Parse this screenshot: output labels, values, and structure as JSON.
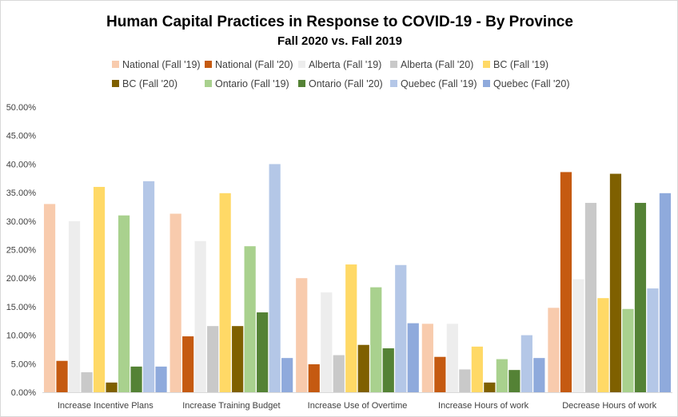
{
  "chart_data": {
    "type": "bar",
    "title": "Human Capital Practices in Response to COVID-19 - By Province",
    "subtitle": "Fall 2020 vs. Fall 2019",
    "xlabel": "",
    "ylabel": "",
    "ylim": [
      0,
      0.5
    ],
    "y_ticks": [
      "0.00%",
      "5.00%",
      "10.00%",
      "15.00%",
      "20.00%",
      "25.00%",
      "30.00%",
      "35.00%",
      "40.00%",
      "45.00%",
      "50.00%"
    ],
    "grid": false,
    "legend_position": "top",
    "categories": [
      "Increase Incentive Plans",
      "Increase Training Budget",
      "Increase Use of Overtime",
      "Increase Hours of work",
      "Decrease Hours of work"
    ],
    "series": [
      {
        "name": "National (Fall '19)",
        "color": "#f8cbad",
        "values": [
          0.33,
          0.313,
          0.2,
          0.12,
          0.148
        ]
      },
      {
        "name": "National (Fall '20)",
        "color": "#c55a11",
        "values": [
          0.055,
          0.098,
          0.049,
          0.062,
          0.386
        ]
      },
      {
        "name": "Alberta (Fall '19)",
        "color": "#ededed",
        "values": [
          0.3,
          0.265,
          0.175,
          0.12,
          0.198
        ]
      },
      {
        "name": "Alberta (Fall '20)",
        "color": "#c9c9c9",
        "values": [
          0.035,
          0.116,
          0.065,
          0.04,
          0.332
        ]
      },
      {
        "name": "BC (Fall '19)",
        "color": "#ffd966",
        "values": [
          0.36,
          0.349,
          0.224,
          0.08,
          0.165
        ]
      },
      {
        "name": "BC (Fall '20)",
        "color": "#7f6000",
        "values": [
          0.017,
          0.116,
          0.083,
          0.017,
          0.383
        ]
      },
      {
        "name": "Ontario (Fall '19)",
        "color": "#a9d18e",
        "values": [
          0.31,
          0.256,
          0.184,
          0.058,
          0.146
        ]
      },
      {
        "name": "Ontario (Fall '20)",
        "color": "#548235",
        "values": [
          0.045,
          0.14,
          0.077,
          0.039,
          0.332
        ]
      },
      {
        "name": "Quebec (Fall '19)",
        "color": "#b4c7e7",
        "values": [
          0.37,
          0.4,
          0.223,
          0.1,
          0.182
        ]
      },
      {
        "name": "Quebec (Fall '20)",
        "color": "#8faadc",
        "values": [
          0.045,
          0.06,
          0.121,
          0.06,
          0.349
        ]
      }
    ]
  }
}
